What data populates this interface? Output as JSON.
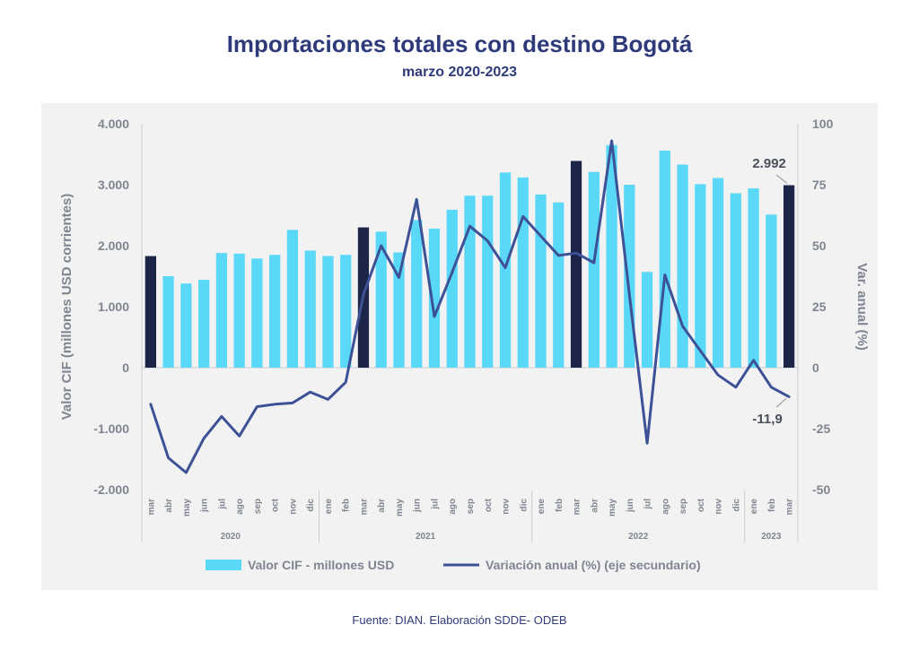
{
  "title": "Importaciones totales con destino Bogotá",
  "subtitle": "marzo 2020-2023",
  "source": "Fuente: DIAN. Elaboración SDDE- ODEB",
  "colors": {
    "bar": "#5ad8f7",
    "bar_highlight": "#1c2548",
    "line": "#3d5196",
    "title": "#2e3a7a",
    "axis_text": "#7f8590"
  },
  "chart_data": {
    "type": "bar+line",
    "title": "Importaciones totales con destino Bogotá",
    "subtitle": "marzo 2020-2023",
    "categories": [
      "mar",
      "abr",
      "may",
      "jun",
      "jul",
      "ago",
      "sep",
      "oct",
      "nov",
      "dic",
      "ene",
      "feb",
      "mar",
      "abr",
      "may",
      "jun",
      "jul",
      "ago",
      "sep",
      "oct",
      "nov",
      "dic",
      "ene",
      "feb",
      "mar",
      "abr",
      "may",
      "jun",
      "jul",
      "ago",
      "sep",
      "oct",
      "nov",
      "dic",
      "ene",
      "feb",
      "mar"
    ],
    "highlight_indices": [
      0,
      12,
      24,
      36
    ],
    "years": [
      {
        "label": "2020",
        "start": 0,
        "end": 9
      },
      {
        "label": "2021",
        "start": 10,
        "end": 21
      },
      {
        "label": "2022",
        "start": 22,
        "end": 33
      },
      {
        "label": "2023",
        "start": 34,
        "end": 36
      }
    ],
    "series": [
      {
        "name": "Valor CIF - millones USD",
        "type": "bar",
        "axis": "primary",
        "values": [
          1830,
          1500,
          1380,
          1440,
          1880,
          1870,
          1790,
          1850,
          2260,
          1920,
          1830,
          1850,
          2300,
          2230,
          1890,
          2420,
          2280,
          2590,
          2820,
          2820,
          3200,
          3120,
          2840,
          2710,
          3390,
          3210,
          3650,
          3000,
          1570,
          3560,
          3330,
          3010,
          3110,
          2860,
          2940,
          2510,
          2992
        ]
      },
      {
        "name": "Variación anual (%) (eje secundario)",
        "type": "line",
        "axis": "secondary",
        "values": [
          -15,
          -37,
          -43,
          -29,
          -20,
          -28,
          -16,
          -15,
          -14.5,
          -10,
          -13,
          -6,
          30,
          50,
          37,
          69,
          21,
          39,
          58,
          52,
          41,
          62,
          54,
          46,
          47,
          43,
          93,
          30,
          -31,
          38,
          17,
          7,
          -3,
          -8,
          3,
          -8,
          -11.9
        ]
      }
    ],
    "y_primary": {
      "label": "Valor CIF (millones USD corrientes)",
      "min": -2000,
      "max": 4000,
      "ticks": [
        "-2.000",
        "-1.000",
        "0",
        "1.000",
        "2.000",
        "3.000",
        "4.000"
      ]
    },
    "y_secondary": {
      "label": "Var. anual (%)",
      "min": -50,
      "max": 100,
      "ticks": [
        "-50",
        "-25",
        "0",
        "25",
        "50",
        "75",
        "100"
      ]
    },
    "annotations": [
      {
        "text": "2.992",
        "series": 0,
        "index": 36
      },
      {
        "text": "-11,9",
        "series": 1,
        "index": 36
      }
    ]
  }
}
